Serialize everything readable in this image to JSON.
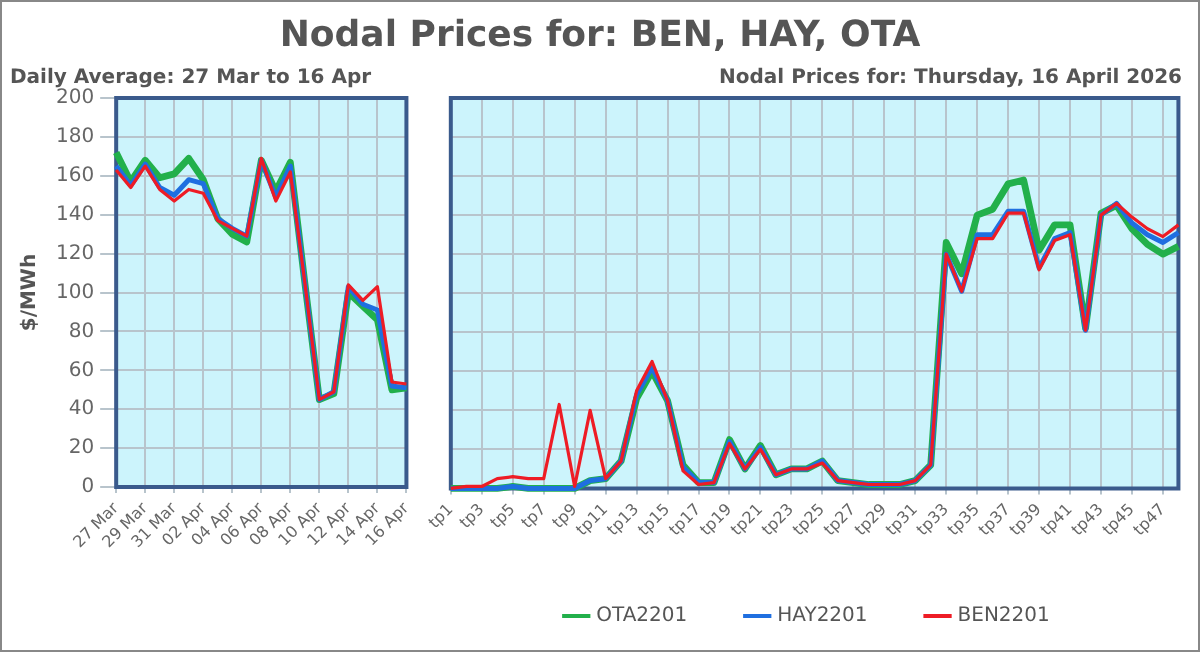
{
  "chart_data": [
    {
      "type": "line",
      "title": "Nodal Prices for: BEN, HAY, OTA",
      "subtitle": "Daily Average: 27 Mar to 16 Apr",
      "ylabel": "$/MWh",
      "categories": [
        "27 Mar",
        null,
        "29 Mar",
        null,
        "31 Mar",
        null,
        "02 Apr",
        null,
        "04 Apr",
        null,
        "06 Apr",
        null,
        "08 Apr",
        null,
        "10 Apr",
        null,
        "12 Apr",
        null,
        "14 Apr",
        null,
        "16 Apr"
      ],
      "series": [
        {
          "color": "#22b04b",
          "values": [
            172,
            157,
            168,
            159,
            161,
            169,
            158,
            138,
            130,
            126,
            168,
            152,
            167,
            105,
            45,
            48,
            100,
            93,
            86,
            50,
            51
          ]
        },
        {
          "color": "#1f6fe0",
          "values": [
            165,
            155,
            166,
            154,
            150,
            158,
            156,
            138,
            133,
            129,
            168,
            149,
            165,
            105,
            45,
            49,
            103,
            94,
            91,
            52,
            51
          ]
        },
        {
          "color": "#ee1c25",
          "values": [
            163,
            154,
            165,
            153,
            147,
            153,
            151,
            137,
            133,
            129,
            169,
            147,
            162,
            105,
            45,
            49,
            104,
            96,
            103,
            54,
            53
          ]
        }
      ],
      "ylim": [
        0,
        200
      ],
      "yticks": [
        0,
        20,
        40,
        60,
        80,
        100,
        120,
        140,
        160,
        180,
        200
      ],
      "grid": true
    },
    {
      "type": "line",
      "subtitle": "Nodal Prices for: Thursday, 16 April 2026",
      "categories": [
        "tp1",
        null,
        "tp3",
        null,
        "tp5",
        null,
        "tp7",
        null,
        "tp9",
        null,
        "tp11",
        null,
        "tp13",
        null,
        "tp15",
        null,
        "tp17",
        null,
        "tp19",
        null,
        "tp21",
        null,
        "tp23",
        null,
        "tp25",
        null,
        "tp27",
        null,
        "tp29",
        null,
        "tp31",
        null,
        "tp33",
        null,
        "tp35",
        null,
        "tp37",
        null,
        "tp39",
        null,
        "tp41",
        null,
        "tp43",
        null,
        "tp45",
        null,
        "tp47",
        null
      ],
      "series": [
        {
          "name": "OTA2201",
          "color": "#22b04b",
          "values": [
            0,
            0,
            0,
            0,
            1,
            0,
            0,
            0,
            0,
            4,
            5,
            14,
            46,
            60,
            45,
            12,
            3,
            3,
            25,
            10,
            22,
            7,
            10,
            10,
            14,
            4,
            3,
            2,
            2,
            2,
            4,
            12,
            126,
            110,
            140,
            143,
            156,
            158,
            122,
            135,
            135,
            82,
            141,
            145,
            133,
            125,
            120,
            124
          ]
        },
        {
          "name": "HAY2201",
          "color": "#1f6fe0",
          "values": [
            0,
            0,
            0,
            0,
            1,
            0,
            0,
            0,
            0,
            4,
            5,
            14,
            48,
            62,
            45,
            11,
            3,
            3,
            24,
            10,
            21,
            7,
            10,
            10,
            14,
            4,
            3,
            2,
            2,
            2,
            4,
            12,
            120,
            101,
            130,
            130,
            142,
            142,
            113,
            128,
            131,
            81,
            140,
            146,
            136,
            130,
            126,
            131
          ]
        },
        {
          "name": "BEN2201",
          "color": "#ee1c25",
          "values": [
            0,
            1,
            1,
            5,
            6,
            5,
            5,
            43,
            1,
            40,
            5,
            14,
            50,
            65,
            45,
            9,
            2,
            3,
            23,
            10,
            20,
            7,
            10,
            10,
            13,
            4,
            3,
            2,
            2,
            2,
            4,
            12,
            120,
            101,
            128,
            128,
            141,
            141,
            112,
            127,
            130,
            81,
            140,
            146,
            139,
            133,
            129,
            135
          ]
        }
      ],
      "ylim": [
        0,
        200
      ],
      "yticks": [
        0,
        20,
        40,
        60,
        80,
        100,
        120,
        140,
        160,
        180,
        200
      ],
      "tick_labels": "x",
      "grid": true,
      "legend": "bottom"
    }
  ]
}
